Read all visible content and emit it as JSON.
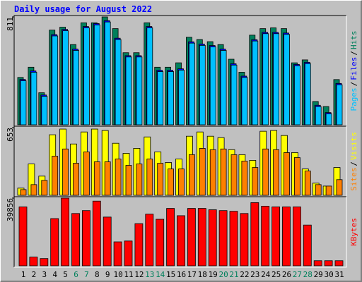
{
  "title": "Daily usage for August 2022",
  "categories": [
    "1",
    "2",
    "3",
    "4",
    "5",
    "6",
    "7",
    "8",
    "9",
    "10",
    "11",
    "12",
    "13",
    "14",
    "15",
    "16",
    "17",
    "18",
    "19",
    "20",
    "21",
    "22",
    "23",
    "24",
    "25",
    "26",
    "27",
    "28",
    "29",
    "30",
    "31"
  ],
  "category_colors": [
    "#000000",
    "#000000",
    "#000000",
    "#000000",
    "#000000",
    "#00805c",
    "#00805c",
    "#000000",
    "#000000",
    "#000000",
    "#000000",
    "#000000",
    "#00805c",
    "#00805c",
    "#000000",
    "#000000",
    "#000000",
    "#000000",
    "#000000",
    "#00805c",
    "#00805c",
    "#000000",
    "#000000",
    "#000000",
    "#000000",
    "#000000",
    "#00805c",
    "#00805c",
    "#000000",
    "#000000",
    "#000000"
  ],
  "chart_data": [
    {
      "type": "bar",
      "ylim": [
        0,
        811
      ],
      "yticks": [
        811
      ],
      "legend_separator": "/",
      "series": [
        {
          "name": "Hits",
          "color": "#00805c",
          "values": [
            356,
            433,
            241,
            712,
            734,
            603,
            767,
            767,
            811,
            723,
            542,
            542,
            767,
            433,
            433,
            466,
            658,
            641,
            625,
            603,
            493,
            395,
            674,
            723,
            729,
            723,
            466,
            488,
            175,
            137,
            340
          ]
        },
        {
          "name": "Files",
          "color": "#0000ff",
          "values": [
            341,
            405,
            224,
            678,
            717,
            569,
            739,
            761,
            783,
            651,
            520,
            520,
            739,
            410,
            410,
            421,
            624,
            607,
            596,
            569,
            459,
            366,
            640,
            695,
            695,
            690,
            454,
            470,
            147,
            92,
            311
          ]
        },
        {
          "name": "Pages",
          "color": "#00c0ff",
          "values": [
            331,
            395,
            214,
            668,
            707,
            559,
            729,
            751,
            773,
            641,
            510,
            510,
            729,
            400,
            400,
            411,
            614,
            597,
            586,
            559,
            449,
            356,
            630,
            685,
            685,
            680,
            444,
            460,
            137,
            82,
            301
          ]
        }
      ]
    },
    {
      "type": "bar",
      "ylim": [
        0,
        653
      ],
      "yticks": [
        653
      ],
      "legend_separator": "/",
      "series": [
        {
          "name": "Visits",
          "color": "#ffff00",
          "values": [
            69,
            302,
            185,
            584,
            639,
            495,
            611,
            639,
            625,
            502,
            405,
            453,
            563,
            419,
            316,
            350,
            570,
            611,
            570,
            556,
            440,
            392,
            337,
            618,
            625,
            577,
            412,
            254,
            117,
            89,
            268
          ]
        },
        {
          "name": "Sites",
          "color": "#ff8000",
          "values": [
            55,
            103,
            144,
            378,
            447,
            309,
            419,
            323,
            323,
            350,
            289,
            302,
            350,
            309,
            254,
            254,
            392,
            453,
            440,
            447,
            392,
            330,
            268,
            447,
            440,
            412,
            364,
            234,
            103,
            89,
            151
          ]
        }
      ]
    },
    {
      "type": "bar",
      "ylim": [
        0,
        39856
      ],
      "yticks": [
        39856
      ],
      "series": [
        {
          "name": "KBytes",
          "color": "#ff0000",
          "values": [
            34700,
            5140,
            4280,
            27800,
            39856,
            30800,
            32500,
            38100,
            28700,
            14100,
            14600,
            24800,
            30400,
            27400,
            33800,
            29500,
            33800,
            33800,
            33000,
            32500,
            32100,
            30800,
            37200,
            35100,
            34700,
            34700,
            34700,
            24000,
            3000,
            3000,
            3000
          ]
        }
      ]
    }
  ]
}
